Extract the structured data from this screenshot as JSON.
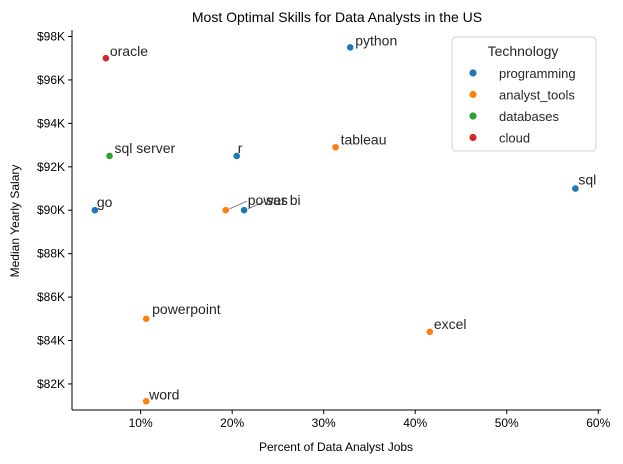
{
  "chart_data": {
    "type": "scatter",
    "title": "Most Optimal Skills for Data Analysts in the US",
    "xlabel": "Percent of Data Analyst Jobs",
    "ylabel": "Median Yearly Salary",
    "xlim": [
      2.5,
      60.3
    ],
    "ylim": [
      80800,
      98300
    ],
    "xticks": [
      10,
      20,
      30,
      40,
      50,
      60
    ],
    "xtick_labels": [
      "10%",
      "20%",
      "30%",
      "40%",
      "50%",
      "60%"
    ],
    "yticks": [
      82000,
      84000,
      86000,
      88000,
      90000,
      92000,
      94000,
      96000,
      98000
    ],
    "ytick_labels": [
      "$82K",
      "$84K",
      "$86K",
      "$88K",
      "$90K",
      "$92K",
      "$94K",
      "$96K",
      "$98K"
    ],
    "grid": false,
    "legend": {
      "title": "Technology",
      "placement": "top-right",
      "entries": [
        {
          "name": "programming",
          "color": "#1f77b4"
        },
        {
          "name": "analyst_tools",
          "color": "#ff7f0e"
        },
        {
          "name": "databases",
          "color": "#2ca02c"
        },
        {
          "name": "cloud",
          "color": "#d62728"
        }
      ]
    },
    "points": [
      {
        "label": "python",
        "x": 32.9,
        "y": 97500,
        "category": "programming"
      },
      {
        "label": "oracle",
        "x": 6.2,
        "y": 97000,
        "category": "cloud"
      },
      {
        "label": "tableau",
        "x": 31.3,
        "y": 92900,
        "category": "analyst_tools"
      },
      {
        "label": "r",
        "x": 20.5,
        "y": 92500,
        "category": "programming"
      },
      {
        "label": "sql server",
        "x": 6.6,
        "y": 92500,
        "category": "databases"
      },
      {
        "label": "sql",
        "x": 57.5,
        "y": 91000,
        "category": "programming"
      },
      {
        "label": "go",
        "x": 5.0,
        "y": 90000,
        "category": "programming"
      },
      {
        "label": "power bi",
        "x": 19.3,
        "y": 90000,
        "category": "analyst_tools"
      },
      {
        "label": "sas",
        "x": 21.3,
        "y": 90000,
        "category": "programming"
      },
      {
        "label": "powerpoint",
        "x": 10.6,
        "y": 85000,
        "category": "analyst_tools"
      },
      {
        "label": "excel",
        "x": 41.6,
        "y": 84400,
        "category": "analyst_tools"
      },
      {
        "label": "word",
        "x": 10.6,
        "y": 81200,
        "category": "analyst_tools"
      }
    ]
  }
}
